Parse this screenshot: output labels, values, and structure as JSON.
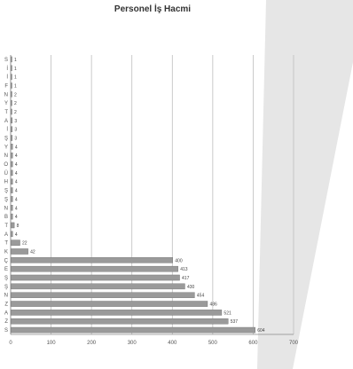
{
  "chart_data": {
    "type": "bar",
    "orientation": "horizontal",
    "title": "Personel İş Hacmi",
    "xlim": [
      0,
      700
    ],
    "xticks": [
      0,
      100,
      200,
      300,
      400,
      500,
      600,
      700
    ],
    "grid": true,
    "legend": "none",
    "bar_color": "#9a9a9a",
    "categories": [
      "S",
      "İ",
      "İ",
      "F",
      "N",
      "Y",
      "T",
      "A",
      "İ",
      "Ş",
      "Y",
      "N",
      "O",
      "Ü",
      "H",
      "Ş",
      "Ş",
      "N",
      "B",
      "T",
      "A",
      "T",
      "K",
      "Ç",
      "E",
      "Ş",
      "Ş",
      "N",
      "Z",
      "A",
      "Z",
      "S"
    ],
    "values": [
      1,
      1,
      1,
      1,
      2,
      2,
      2,
      3,
      3,
      3,
      4,
      4,
      4,
      4,
      4,
      4,
      4,
      4,
      4,
      8,
      4,
      22,
      42,
      400,
      413,
      417,
      430,
      454,
      486,
      521,
      537,
      604
    ],
    "labels": [
      "1",
      "1",
      "1",
      "1",
      "2",
      "2",
      "2",
      "3",
      "3",
      "3",
      "4",
      "4",
      "4",
      "4",
      "4",
      "4",
      "4",
      "4",
      "4",
      "8",
      "4",
      "22",
      "42",
      "400",
      "413",
      "417",
      "430",
      "454",
      "486",
      "521",
      "537",
      "604"
    ]
  }
}
